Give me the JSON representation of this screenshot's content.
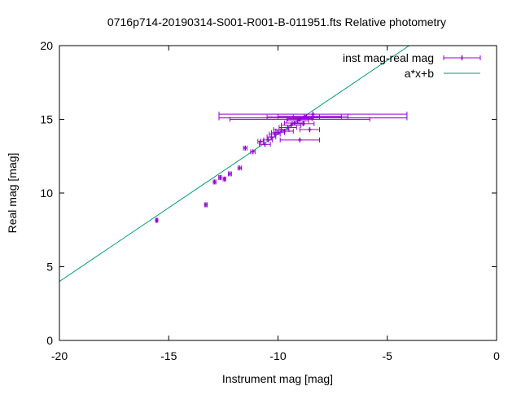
{
  "chart_data": {
    "type": "scatter",
    "title": "0716p714-20190314-S001-R001-B-011951.fts Relative photometry",
    "xlabel": "Instrument mag [mag]",
    "ylabel": "Real mag [mag]",
    "xlim": [
      -20,
      0
    ],
    "ylim": [
      0,
      20
    ],
    "xticks": [
      -20,
      -15,
      -10,
      -5,
      0
    ],
    "yticks": [
      0,
      5,
      10,
      15,
      20
    ],
    "xtick_labels": [
      "-20",
      "-15",
      "-10",
      "-5",
      "0"
    ],
    "ytick_labels": [
      "0",
      "5",
      "10",
      "15",
      "20"
    ],
    "grid": false,
    "legend_position": "top-right",
    "series": [
      {
        "name": "inst mag-real mag",
        "kind": "points-with-x-errorbars",
        "color": "#9400d3",
        "points": [
          {
            "x": -15.55,
            "y": 8.15,
            "xerr": 0.05
          },
          {
            "x": -13.3,
            "y": 9.2,
            "xerr": 0.06
          },
          {
            "x": -12.9,
            "y": 10.75,
            "xerr": 0.06
          },
          {
            "x": -12.65,
            "y": 11.05,
            "xerr": 0.06
          },
          {
            "x": -12.45,
            "y": 10.95,
            "xerr": 0.06
          },
          {
            "x": -12.2,
            "y": 11.3,
            "xerr": 0.07
          },
          {
            "x": -11.75,
            "y": 11.7,
            "xerr": 0.08
          },
          {
            "x": -11.5,
            "y": 13.05,
            "xerr": 0.08
          },
          {
            "x": -11.15,
            "y": 12.8,
            "xerr": 0.1
          },
          {
            "x": -10.8,
            "y": 13.5,
            "xerr": 0.12
          },
          {
            "x": -10.6,
            "y": 13.3,
            "xerr": 0.25
          },
          {
            "x": -10.45,
            "y": 13.6,
            "xerr": 0.2
          },
          {
            "x": -10.3,
            "y": 13.8,
            "xerr": 0.2
          },
          {
            "x": -10.15,
            "y": 14.0,
            "xerr": 0.25
          },
          {
            "x": -10.0,
            "y": 14.1,
            "xerr": 0.3
          },
          {
            "x": -9.85,
            "y": 14.3,
            "xerr": 0.35
          },
          {
            "x": -9.7,
            "y": 14.2,
            "xerr": 0.4
          },
          {
            "x": -9.55,
            "y": 14.45,
            "xerr": 0.4
          },
          {
            "x": -9.4,
            "y": 14.6,
            "xerr": 0.45
          },
          {
            "x": -9.25,
            "y": 14.75,
            "xerr": 0.45
          },
          {
            "x": -9.1,
            "y": 14.9,
            "xerr": 0.5
          },
          {
            "x": -9.0,
            "y": 15.05,
            "xerr": 0.55
          },
          {
            "x": -8.85,
            "y": 14.7,
            "xerr": 0.5
          },
          {
            "x": -8.7,
            "y": 15.15,
            "xerr": 0.6
          },
          {
            "x": -8.55,
            "y": 14.3,
            "xerr": 0.45
          },
          {
            "x": -9.0,
            "y": 13.6,
            "xerr": 0.9
          },
          {
            "x": -8.8,
            "y": 15.15,
            "xerr": 1.7
          },
          {
            "x": -8.4,
            "y": 15.2,
            "xerr": 1.6
          },
          {
            "x": -9.0,
            "y": 15.0,
            "xerr": 3.2
          },
          {
            "x": -8.4,
            "y": 15.35,
            "xerr": 4.3
          },
          {
            "x": -8.4,
            "y": 15.1,
            "xerr": 4.3
          }
        ]
      },
      {
        "name": "a*x+b",
        "kind": "line",
        "color": "#009e73",
        "a": 1.0,
        "b": 24.0
      }
    ]
  }
}
